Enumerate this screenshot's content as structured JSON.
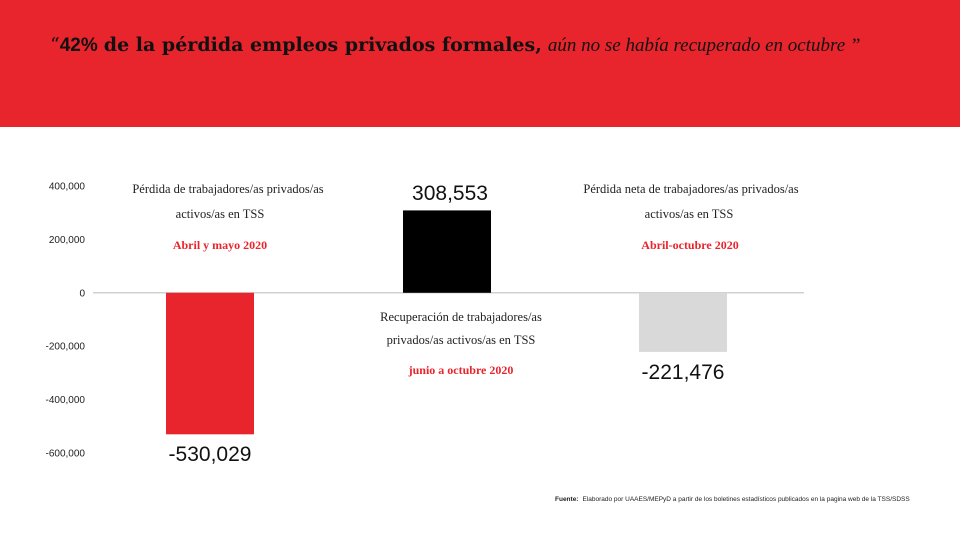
{
  "header": {
    "title_open_quote": "“",
    "title_pct": "42%",
    "title_bold": "de la pérdida empleos privados formales,",
    "title_italic": "aún no se había recuperado en octubre ”"
  },
  "colors": {
    "banner": "#e8242c",
    "bar_loss": "#e8242c",
    "bar_recovery": "#000000",
    "bar_net": "#d9d9d9",
    "highlight": "#e8242c"
  },
  "chart_data": {
    "type": "bar",
    "title": "",
    "categories": [
      "Pérdida abril y mayo 2020",
      "Recuperación junio a octubre 2020",
      "Pérdida neta abril-octubre 2020"
    ],
    "values": [
      -530029,
      308553,
      -221476
    ],
    "value_labels": [
      "-530,029",
      "308,553",
      "-221,476"
    ],
    "ylim": [
      -600000,
      400000
    ],
    "y_ticks": [
      400000,
      200000,
      0,
      -200000,
      -400000,
      -600000
    ],
    "y_tick_labels": [
      "400,000",
      "200,000",
      "0",
      "-200,000",
      "-400,000",
      "-600,000"
    ],
    "annotations": [
      {
        "line1": "Pérdida de trabajadores/as privados/as",
        "line2": "activos/as en TSS",
        "period": "Abril y mayo 2020"
      },
      {
        "line1": "Recuperación de trabajadores/as",
        "line2": "privados/as activos/as en TSS",
        "period": "junio a octubre 2020"
      },
      {
        "line1": "Pérdida neta de trabajadores/as privados/as",
        "line2": "activos/as en TSS",
        "period": "Abril-octubre 2020"
      }
    ]
  },
  "footer": {
    "source_label": "Fuente:",
    "source_text": "Elaborado por UAAES/MEPyD a partir de los boletines estadísticos publicados en la pagina web de la TSS/SDSS"
  }
}
